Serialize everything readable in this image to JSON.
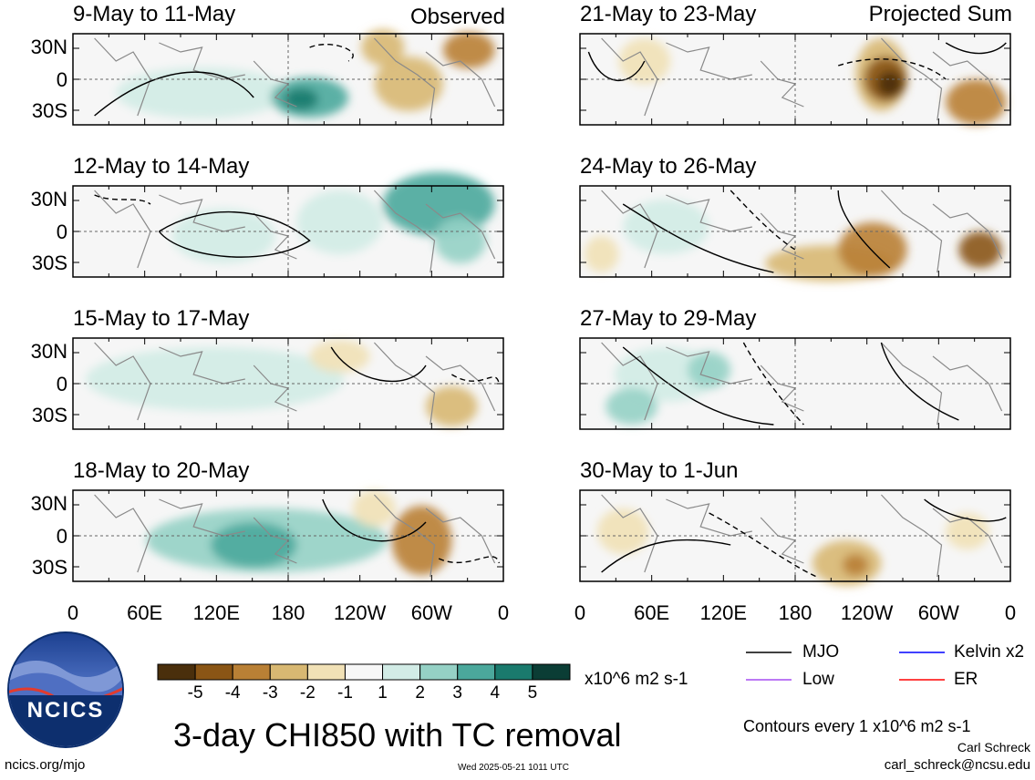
{
  "panel_titles": {
    "left": [
      "9-May to 11-May",
      "12-May to 14-May",
      "15-May to 17-May",
      "18-May to 20-May"
    ],
    "right": [
      "21-May to 23-May",
      "24-May to 26-May",
      "27-May to 29-May",
      "30-May to 1-Jun"
    ]
  },
  "corner_labels": {
    "observed": "Observed",
    "projected": "Projected Sum"
  },
  "lat_labels": [
    "30N",
    "0",
    "30S"
  ],
  "lon_labels": [
    "0",
    "60E",
    "120E",
    "180",
    "120W",
    "60W",
    "0"
  ],
  "colorbar": {
    "colors": [
      "#4a2f0c",
      "#8a5515",
      "#b98035",
      "#d8b872",
      "#f1e1b6",
      "#f7f7f7",
      "#d2ece6",
      "#95d1c5",
      "#4ba89c",
      "#1a7a6d",
      "#0b3d35"
    ],
    "tick_labels": [
      "-5",
      "-4",
      "-3",
      "-2",
      "-1",
      "1",
      "2",
      "3",
      "4",
      "5"
    ],
    "units": "x10^6 m2 s-1"
  },
  "chart_title": "3-day CHI850 with TC removal",
  "legend": [
    {
      "label": "MJO",
      "color": "#000000"
    },
    {
      "label": "Kelvin x2",
      "color": "#0000ff"
    },
    {
      "label": "Low",
      "color": "#a64df2"
    },
    {
      "label": "ER",
      "color": "#ff0000"
    }
  ],
  "contour_note": "Contours every 1 x10^6 m2 s-1",
  "logo_text": "NCICS",
  "footer": {
    "left": "ncics.org/mjo",
    "center": "Wed 2025-05-21 1011 UTC",
    "author": "Carl Schreck",
    "email": "carl_schreck@ncsu.edu"
  }
}
